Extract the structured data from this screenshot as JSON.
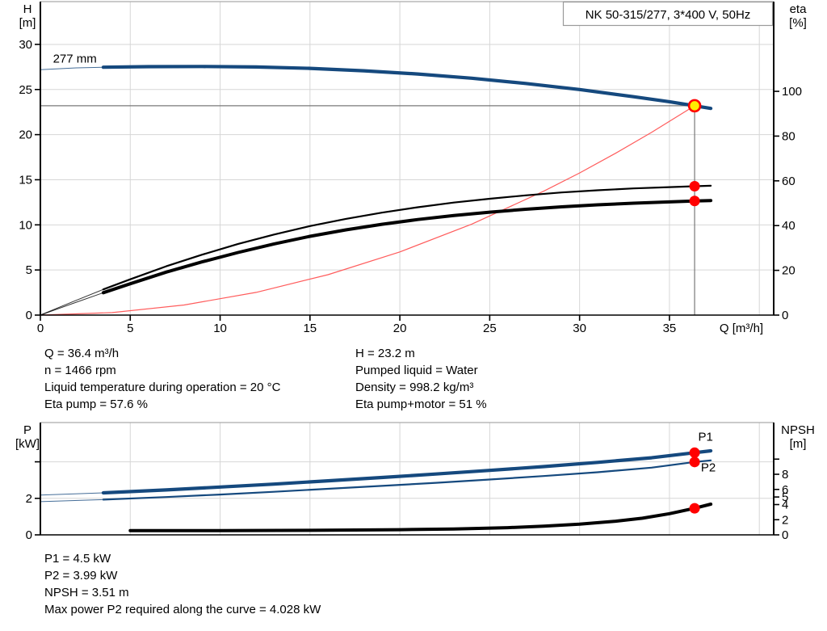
{
  "title_box": "NK 50-315/277, 3*400 V, 50Hz",
  "colors": {
    "curve_blue": "#15497e",
    "system_red": "#ff5c5c",
    "marker_red": "#ff0000",
    "operating_yellow": "#ffec00",
    "grid": "#d6d6d6",
    "frame": "#aaaaaa",
    "crosshair": "#787878",
    "label_blue": "#2a6db5"
  },
  "info": {
    "top_left": [
      "Q = 36.4 m³/h",
      "n = 1466 rpm",
      "Liquid temperature during operation = 20 °C",
      "Eta pump = 57.6 %"
    ],
    "top_right": [
      "H = 23.2 m",
      "Pumped liquid = Water",
      "Density = 998.2 kg/m³",
      "Eta pump+motor = 51 %"
    ],
    "bottom": [
      "P1 = 4.5 kW",
      "P2 = 3.99 kW",
      "NPSH = 3.51 m",
      "Max power P2 required along the curve = 4.028 kW"
    ]
  },
  "chart_data": [
    {
      "type": "line",
      "name": "qh-efficiency-chart",
      "title": "NK 50-315/277, 3*400 V, 50Hz",
      "grid_color": "#d6d6d6",
      "frame_color": "#aaaaaa",
      "x_axis": {
        "label": "Q [m³/h]",
        "range": [
          0,
          40.8
        ],
        "ticks": [
          [
            0,
            "0"
          ],
          [
            5,
            "5"
          ],
          [
            10,
            "10"
          ],
          [
            15,
            "15"
          ],
          [
            20,
            "20"
          ],
          [
            25,
            "25"
          ],
          [
            30,
            "30"
          ],
          [
            35,
            "35"
          ]
        ],
        "gridlines": [
          5,
          10,
          15,
          20,
          25,
          30,
          35,
          40
        ]
      },
      "left_axis": {
        "label": [
          "H",
          "[m]"
        ],
        "range": [
          0,
          34.74
        ],
        "ticks": [
          [
            0,
            "0"
          ],
          [
            5,
            "5"
          ],
          [
            10,
            "10"
          ],
          [
            15,
            "15"
          ],
          [
            20,
            "20"
          ],
          [
            25,
            "25"
          ],
          [
            30,
            "30"
          ]
        ],
        "gridlines": [
          5,
          10,
          15,
          20,
          25,
          30
        ]
      },
      "right_axis": {
        "label": [
          "eta",
          "[%]"
        ],
        "range": [
          0,
          140.1
        ],
        "ticks": [
          [
            0,
            "0"
          ],
          [
            20,
            "20"
          ],
          [
            40,
            "40"
          ],
          [
            60,
            "60"
          ],
          [
            80,
            "80"
          ],
          [
            100,
            "100"
          ]
        ]
      },
      "crosshair": {
        "q": 36.4,
        "value": 23.2
      },
      "annotations": [
        {
          "text": "277 mm",
          "q": 0.7,
          "value": 28.0,
          "axis": "left",
          "color": "#000000"
        }
      ],
      "series": [
        {
          "name": "system-curve",
          "axis": "left",
          "color": "#ff5c5c",
          "width": 1.2,
          "points": [
            [
              0,
              0
            ],
            [
              4,
              0.28
            ],
            [
              8,
              1.12
            ],
            [
              12,
              2.52
            ],
            [
              16,
              4.48
            ],
            [
              20,
              7.0
            ],
            [
              24,
              10.08
            ],
            [
              28,
              13.73
            ],
            [
              30,
              15.75
            ],
            [
              32,
              17.93
            ],
            [
              34,
              20.24
            ],
            [
              36.4,
              23.2
            ]
          ]
        },
        {
          "name": "eta-pump-curve",
          "axis": "right",
          "color": "#000000",
          "width": 2.2,
          "thin_until": 3.5,
          "points": [
            [
              0,
              0
            ],
            [
              1.8,
              6
            ],
            [
              3.5,
              11.5
            ],
            [
              5,
              16
            ],
            [
              7,
              21.8
            ],
            [
              9,
              27
            ],
            [
              11,
              31.8
            ],
            [
              13,
              36
            ],
            [
              15,
              39.8
            ],
            [
              17,
              43
            ],
            [
              19,
              45.8
            ],
            [
              21,
              48.2
            ],
            [
              23,
              50.3
            ],
            [
              25,
              52
            ],
            [
              27,
              53.5
            ],
            [
              29,
              54.8
            ],
            [
              31,
              55.8
            ],
            [
              33,
              56.6
            ],
            [
              35,
              57.2
            ],
            [
              36.4,
              57.6
            ],
            [
              37.3,
              57.8
            ]
          ]
        },
        {
          "name": "eta-pump-motor-curve",
          "axis": "right",
          "color": "#000000",
          "width": 4,
          "thin_until": 3.5,
          "points": [
            [
              0,
              0
            ],
            [
              1.8,
              5.2
            ],
            [
              3.5,
              10
            ],
            [
              5,
              14
            ],
            [
              7,
              19.2
            ],
            [
              9,
              23.8
            ],
            [
              11,
              28
            ],
            [
              13,
              31.8
            ],
            [
              15,
              35.2
            ],
            [
              17,
              38.1
            ],
            [
              19,
              40.6
            ],
            [
              21,
              42.7
            ],
            [
              23,
              44.5
            ],
            [
              25,
              46
            ],
            [
              27,
              47.3
            ],
            [
              29,
              48.4
            ],
            [
              31,
              49.3
            ],
            [
              33,
              50
            ],
            [
              35,
              50.6
            ],
            [
              36.4,
              51
            ],
            [
              37.3,
              51.2
            ]
          ]
        },
        {
          "name": "pump-curve-277mm",
          "axis": "left",
          "color": "#15497e",
          "width": 4.2,
          "thin_until": 3.5,
          "points": [
            [
              0,
              27.2
            ],
            [
              2,
              27.4
            ],
            [
              3.5,
              27.47
            ],
            [
              6,
              27.53
            ],
            [
              9,
              27.55
            ],
            [
              12,
              27.5
            ],
            [
              15,
              27.34
            ],
            [
              18,
              27.08
            ],
            [
              21,
              26.72
            ],
            [
              24,
              26.25
            ],
            [
              27,
              25.67
            ],
            [
              30,
              25.0
            ],
            [
              33,
              24.2
            ],
            [
              35,
              23.65
            ],
            [
              36.4,
              23.2
            ],
            [
              37.3,
              22.9
            ]
          ]
        }
      ],
      "markers": [
        {
          "name": "eta-pump-point",
          "q": 36.4,
          "value": 57.6,
          "axis": "right",
          "fill": "#ff0000",
          "stroke": "none",
          "r": 6.5
        },
        {
          "name": "eta-pump-motor-point",
          "q": 36.4,
          "value": 51,
          "axis": "right",
          "fill": "#ff0000",
          "stroke": "none",
          "r": 6.5
        },
        {
          "name": "operating-point",
          "q": 36.4,
          "value": 23.2,
          "axis": "left",
          "fill": "#ffec00",
          "stroke": "#ff0000",
          "r": 7
        }
      ]
    },
    {
      "type": "line",
      "name": "power-npsh-chart",
      "title": "",
      "grid_color": "#d6d6d6",
      "frame_color": "#aaaaaa",
      "x_axis": {
        "label": "",
        "range": [
          0,
          40.8
        ],
        "ticks": [],
        "gridlines": [
          5,
          10,
          15,
          20,
          25,
          30,
          35,
          40
        ]
      },
      "left_axis": {
        "label": [
          "P",
          "[kW]"
        ],
        "range": [
          0,
          6.15
        ],
        "ticks": [
          [
            0,
            "0"
          ],
          [
            2,
            "2"
          ],
          [
            4,
            ""
          ]
        ],
        "gridlines": [
          2,
          4
        ]
      },
      "right_axis": {
        "label": [
          "NPSH",
          "[m]"
        ],
        "range": [
          0,
          14.83
        ],
        "ticks": [
          [
            0,
            "0"
          ],
          [
            2,
            "2"
          ],
          [
            4,
            "4"
          ],
          [
            5,
            "5"
          ],
          [
            6,
            "6"
          ],
          [
            8,
            "8"
          ],
          [
            10,
            ""
          ]
        ]
      },
      "crosshair": null,
      "annotations": [
        {
          "text": "P1",
          "q": 36.6,
          "value": 5.15,
          "axis": "left",
          "color": "#2a6db5"
        },
        {
          "text": "P2",
          "q": 36.75,
          "value": 3.48,
          "axis": "left",
          "color": "#2a6db5"
        }
      ],
      "series": [
        {
          "name": "npsh-curve",
          "axis": "right",
          "color": "#000000",
          "width": 4,
          "thin_until": 3.5,
          "points": [
            [
              0,
              0.55
            ],
            [
              5,
              0.55
            ],
            [
              10,
              0.57
            ],
            [
              15,
              0.6
            ],
            [
              20,
              0.68
            ],
            [
              23,
              0.78
            ],
            [
              26,
              0.95
            ],
            [
              28,
              1.15
            ],
            [
              30,
              1.42
            ],
            [
              32,
              1.8
            ],
            [
              33.5,
              2.2
            ],
            [
              35,
              2.8
            ],
            [
              36.4,
              3.51
            ],
            [
              37.3,
              4.05
            ]
          ]
        },
        {
          "name": "p2-curve",
          "axis": "left",
          "color": "#15497e",
          "width": 2.2,
          "thin_until": 3.5,
          "points": [
            [
              0,
              1.82
            ],
            [
              3.5,
              1.93
            ],
            [
              7,
              2.07
            ],
            [
              10,
              2.21
            ],
            [
              13,
              2.36
            ],
            [
              16,
              2.52
            ],
            [
              19,
              2.68
            ],
            [
              22,
              2.85
            ],
            [
              25,
              3.03
            ],
            [
              28,
              3.22
            ],
            [
              31,
              3.43
            ],
            [
              34,
              3.68
            ],
            [
              36.4,
              3.99
            ],
            [
              37.3,
              4.08
            ]
          ]
        },
        {
          "name": "p1-curve",
          "axis": "left",
          "color": "#15497e",
          "width": 4.2,
          "thin_until": 3.5,
          "points": [
            [
              0,
              2.18
            ],
            [
              3.5,
              2.3
            ],
            [
              7,
              2.46
            ],
            [
              10,
              2.62
            ],
            [
              13,
              2.78
            ],
            [
              16,
              2.96
            ],
            [
              19,
              3.14
            ],
            [
              22,
              3.33
            ],
            [
              25,
              3.53
            ],
            [
              28,
              3.74
            ],
            [
              31,
              3.97
            ],
            [
              34,
              4.22
            ],
            [
              36.4,
              4.5
            ],
            [
              37.3,
              4.6
            ]
          ]
        }
      ],
      "markers": [
        {
          "name": "p1-point",
          "q": 36.4,
          "value": 4.5,
          "axis": "left",
          "fill": "#ff0000",
          "stroke": "none",
          "r": 6.5
        },
        {
          "name": "p2-point",
          "q": 36.4,
          "value": 3.99,
          "axis": "left",
          "fill": "#ff0000",
          "stroke": "none",
          "r": 6.5
        },
        {
          "name": "npsh-point",
          "q": 36.4,
          "value": 3.51,
          "axis": "right",
          "fill": "#ff0000",
          "stroke": "none",
          "r": 6.5
        }
      ]
    }
  ]
}
